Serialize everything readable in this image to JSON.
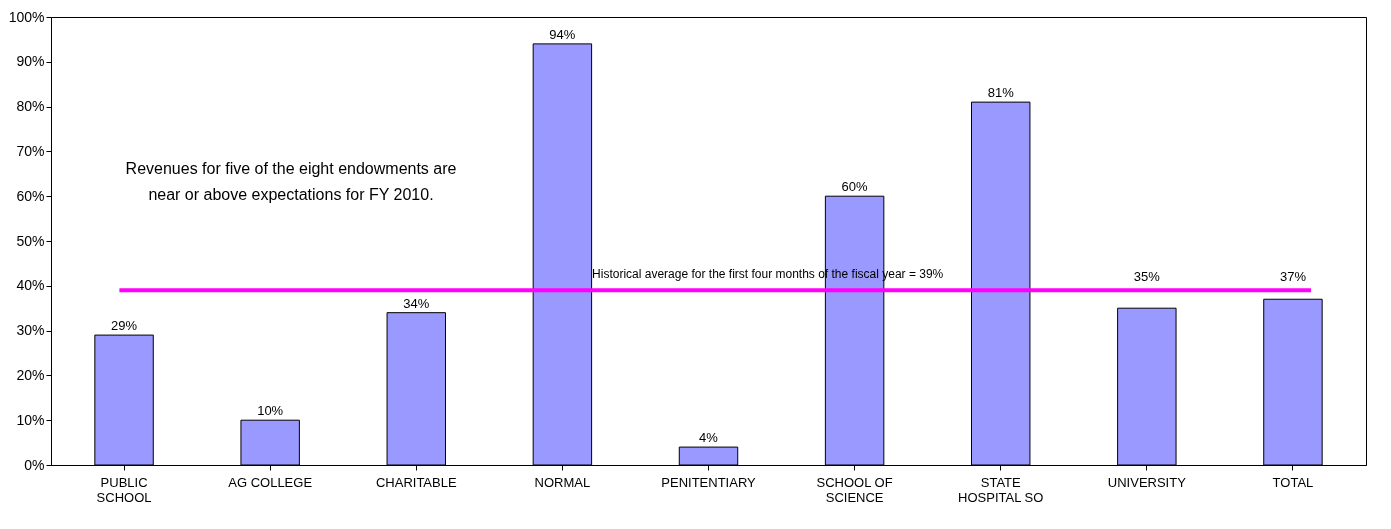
{
  "chart_data": {
    "type": "bar",
    "categories": [
      "PUBLIC SCHOOL",
      "AG COLLEGE",
      "CHARITABLE",
      "NORMAL",
      "PENITENTIARY",
      "SCHOOL OF SCIENCE",
      "STATE HOSPITAL SO",
      "UNIVERSITY",
      "TOTAL"
    ],
    "values": [
      29,
      10,
      34,
      94,
      4,
      60,
      81,
      35,
      37
    ],
    "value_labels": [
      "29%",
      "10%",
      "34%",
      "94%",
      "4%",
      "60%",
      "81%",
      "35%",
      "37%"
    ],
    "color": "#9999ff",
    "ylim": [
      0,
      100
    ],
    "yticks": [
      {
        "value": 0,
        "label": "0%"
      },
      {
        "value": 10,
        "label": "10%"
      },
      {
        "value": 20,
        "label": "20%"
      },
      {
        "value": 30,
        "label": "30%"
      },
      {
        "value": 40,
        "label": "40%"
      },
      {
        "value": 50,
        "label": "50%"
      },
      {
        "value": 60,
        "label": "60%"
      },
      {
        "value": 70,
        "label": "70%"
      },
      {
        "value": 80,
        "label": "80%"
      },
      {
        "value": 90,
        "label": "90%"
      },
      {
        "value": 100,
        "label": "100%"
      }
    ],
    "grid": false,
    "ref_lines": [
      {
        "axis": "y",
        "value": 39,
        "label": "Historical average for the first four months of the fiscal year = 39%",
        "color": "#ff00ff"
      }
    ],
    "annotations": [
      "Revenues for five of the eight endowments are near or above expectations for FY 2010."
    ]
  }
}
